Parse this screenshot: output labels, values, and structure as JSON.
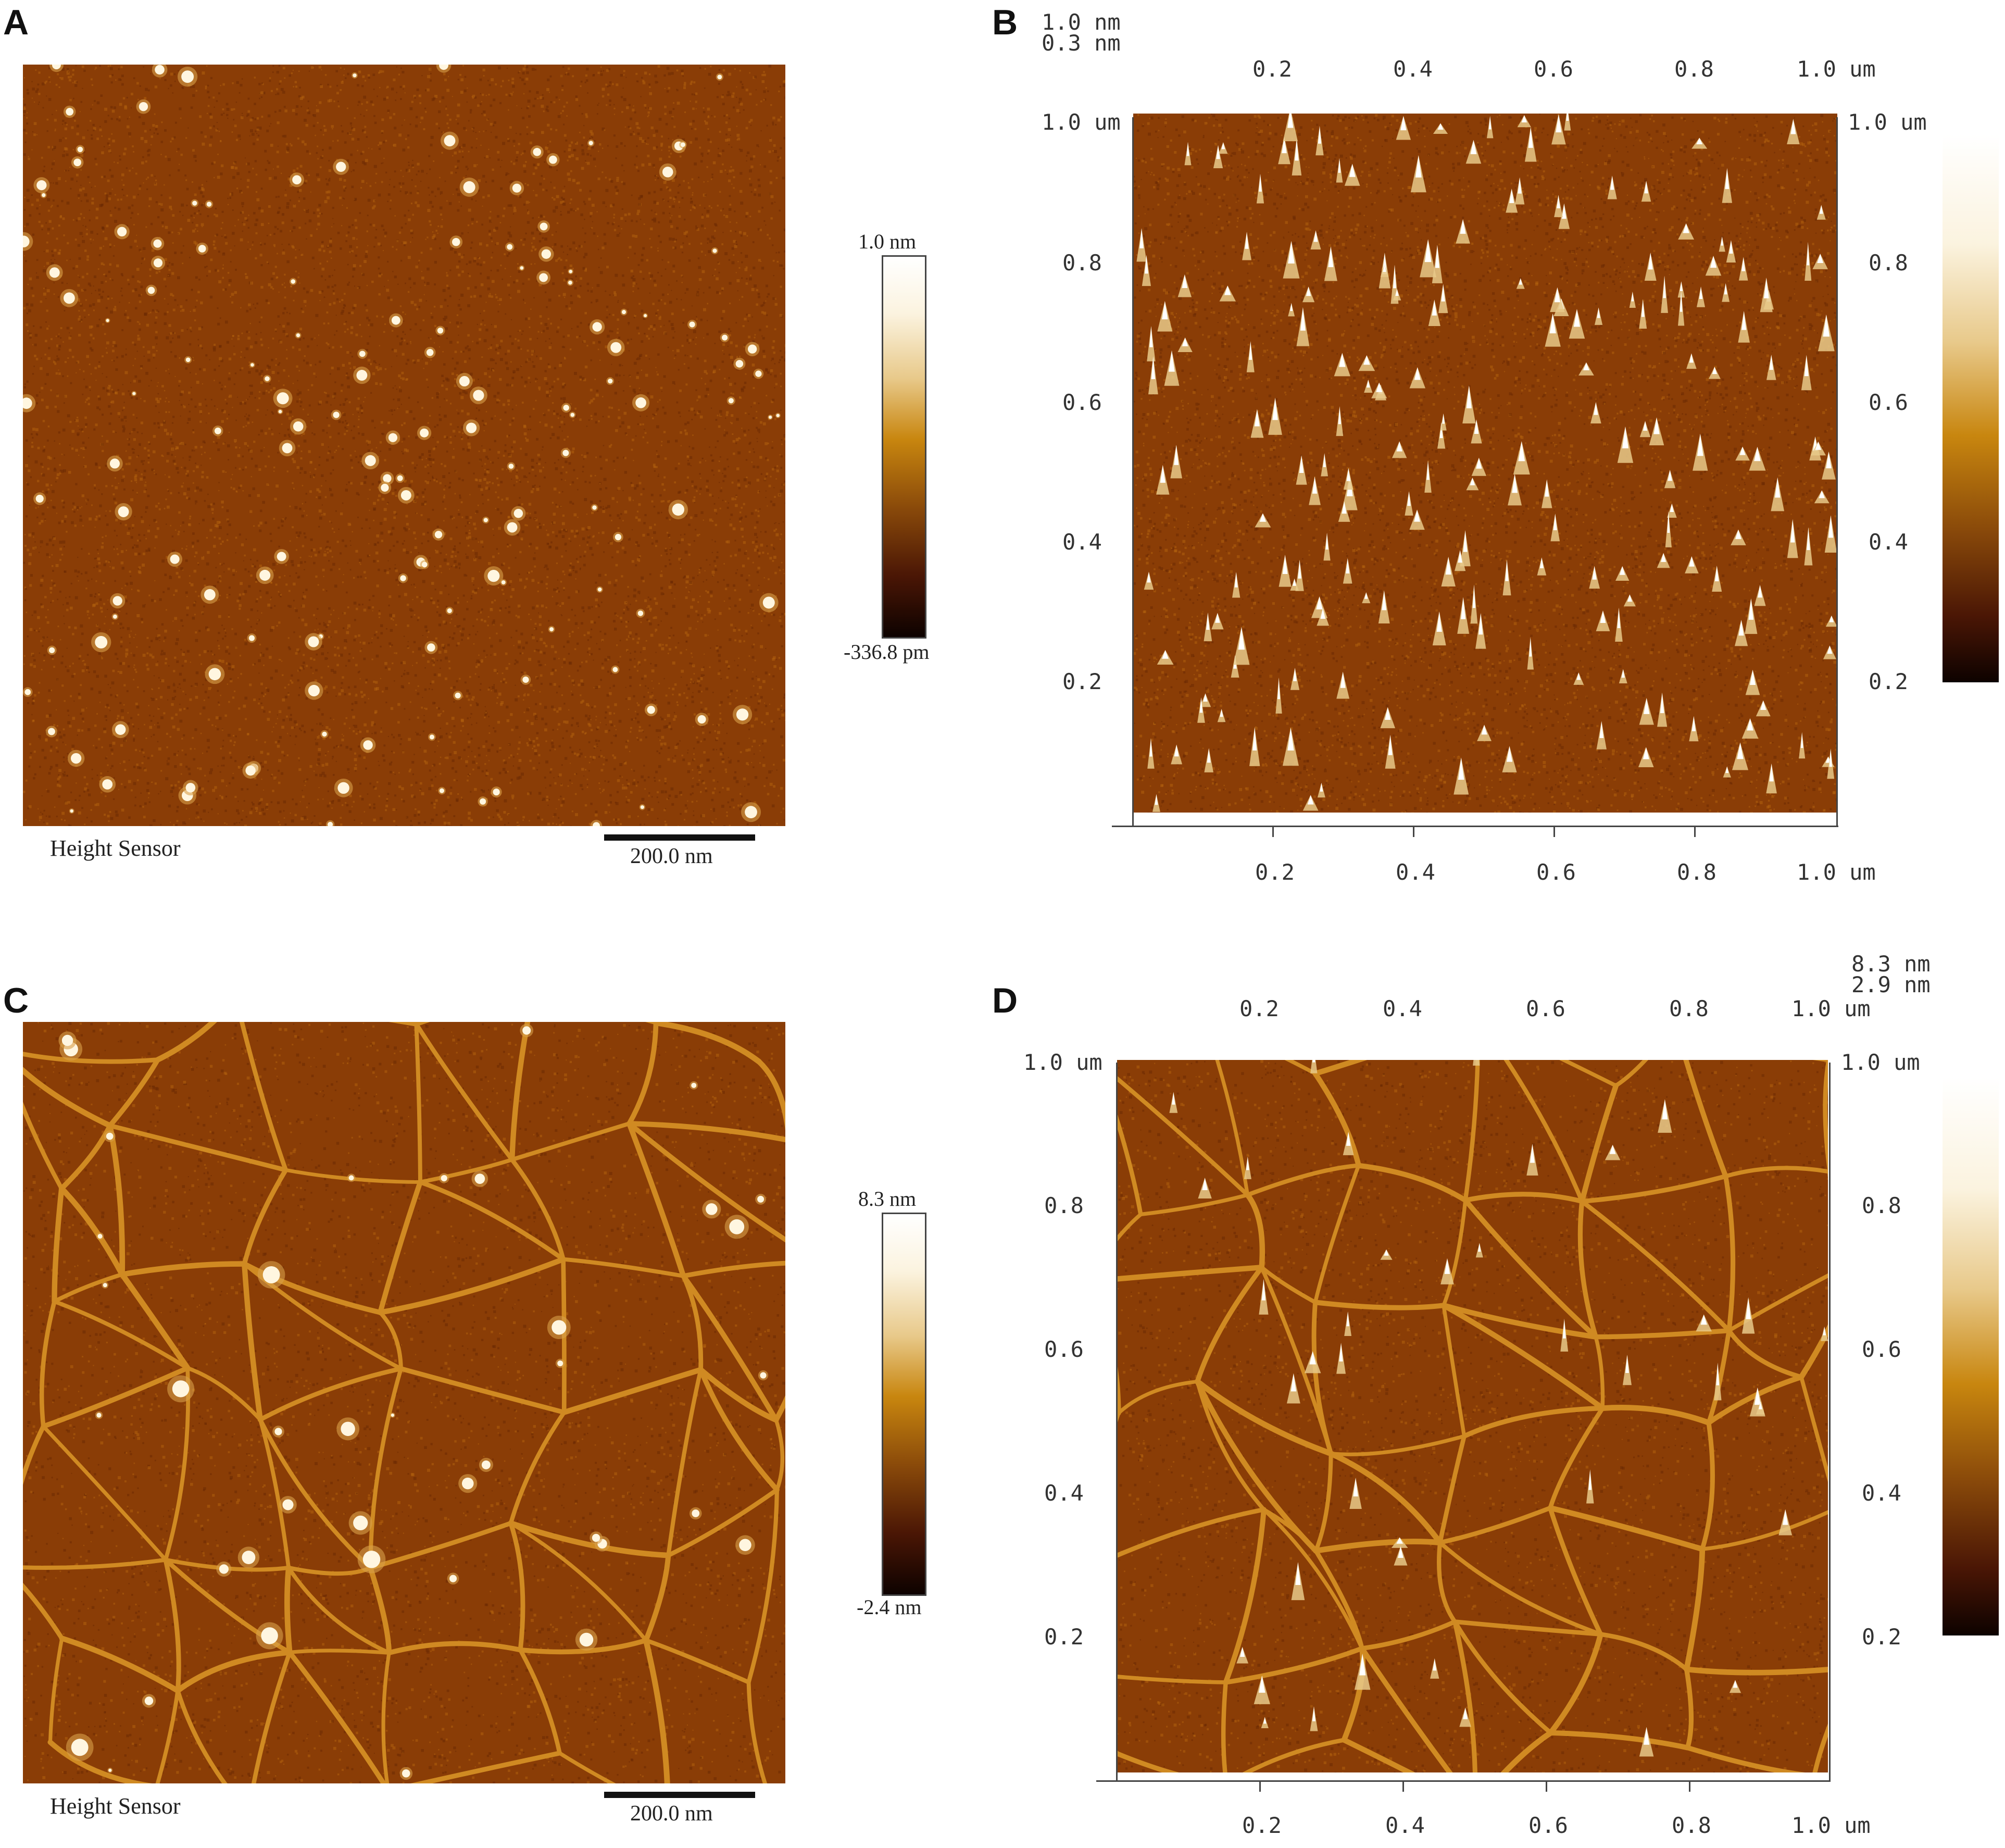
{
  "panels": {
    "a": {
      "letter": "A",
      "footer_left": "Height Sensor",
      "scalebar_label": "200.0 nm",
      "colorbar_max": "1.0 nm",
      "colorbar_min": "-336.8 pm"
    },
    "b": {
      "letter": "B",
      "zscale_line1": "1.0 nm",
      "zscale_line2": "0.3 nm",
      "ticks_top": [
        "0.2",
        "0.4",
        "0.6",
        "0.8",
        "1.0 um"
      ],
      "ticks_bottom": [
        "0.2",
        "0.4",
        "0.6",
        "0.8",
        "1.0 um"
      ],
      "ticks_left": [
        "1.0 um",
        "0.8",
        "0.6",
        "0.4",
        "0.2"
      ],
      "ticks_right": [
        "1.0 um",
        "0.8",
        "0.6",
        "0.4",
        "0.2"
      ]
    },
    "c": {
      "letter": "C",
      "footer_left": "Height Sensor",
      "scalebar_label": "200.0 nm",
      "colorbar_max": "8.3 nm",
      "colorbar_min": "-2.4 nm"
    },
    "d": {
      "letter": "D",
      "zscale_line1": "8.3 nm",
      "zscale_line2": "2.9 nm",
      "ticks_top": [
        "0.2",
        "0.4",
        "0.6",
        "0.8",
        "1.0 um"
      ],
      "ticks_bottom": [
        "0.2",
        "0.4",
        "0.6",
        "0.8",
        "1.0 um"
      ],
      "ticks_left": [
        "1.0 um",
        "0.8",
        "0.6",
        "0.4",
        "0.2"
      ],
      "ticks_right": [
        "1.0 um",
        "0.8",
        "0.6",
        "0.4",
        "0.2"
      ]
    }
  },
  "colors": {
    "substrate": "#8a3d06",
    "substrate_dark": "#6b2a03",
    "feature_highlight": "#fff6e0",
    "fiber": "#d08a22"
  }
}
